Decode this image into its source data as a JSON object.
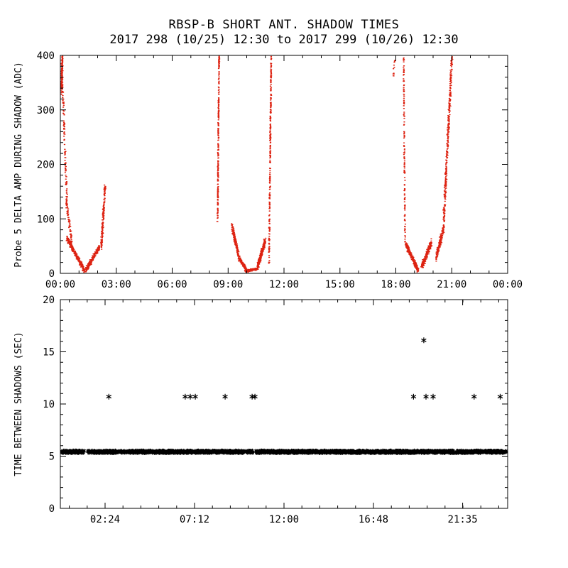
{
  "title": "RBSP-B SHORT ANT. SHADOW TIMES",
  "subtitle": "2017 298 (10/25) 12:30 to 2017 299 (10/26) 12:30",
  "colors": {
    "scatter_red": "#dd2211",
    "marker_black": "#000000",
    "axis": "#000000",
    "background": "#ffffff"
  },
  "chart_data": [
    {
      "type": "scatter",
      "panel": "top",
      "ylabel": "Probe 5 DELTA AMP DURING SHADOW (ADC)",
      "xlabel": "",
      "xlim": [
        0,
        24
      ],
      "ylim": [
        0,
        400
      ],
      "grid": false,
      "marker": "dot",
      "color": "#dd2211",
      "xticks": [
        {
          "v": 0,
          "label": "00:00"
        },
        {
          "v": 3,
          "label": "03:00"
        },
        {
          "v": 6,
          "label": "06:00"
        },
        {
          "v": 9,
          "label": "09:00"
        },
        {
          "v": 12,
          "label": "12:00"
        },
        {
          "v": 15,
          "label": "15:00"
        },
        {
          "v": 18,
          "label": "18:00"
        },
        {
          "v": 21,
          "label": "21:00"
        },
        {
          "v": 24,
          "label": "00:00"
        }
      ],
      "yticks": [
        {
          "v": 0,
          "label": "0"
        },
        {
          "v": 100,
          "label": "100"
        },
        {
          "v": 200,
          "label": "200"
        },
        {
          "v": 300,
          "label": "300"
        },
        {
          "v": 400,
          "label": "400"
        }
      ],
      "minor_x": 1,
      "minor_y": 20,
      "clusters": [
        {
          "x0": 0.04,
          "x1": 0.1,
          "y0": 335,
          "y1": 400,
          "n": 150,
          "sx": 0.035,
          "sy": 14
        },
        {
          "x0": 0.05,
          "x1": 0.33,
          "y0": 392,
          "y1": 140,
          "n": 120,
          "sx": 0.05,
          "sy": 22
        },
        {
          "x0": 0.3,
          "x1": 0.62,
          "y0": 135,
          "y1": 48,
          "n": 90,
          "sx": 0.04,
          "sy": 13
        },
        {
          "x0": 0.32,
          "x1": 1.28,
          "y0": 66,
          "y1": 5,
          "n": 260,
          "sx": 0.05,
          "sy": 7
        },
        {
          "x0": 1.35,
          "x1": 2.08,
          "y0": 6,
          "y1": 48,
          "n": 210,
          "sx": 0.05,
          "sy": 7
        },
        {
          "x0": 2.18,
          "x1": 2.38,
          "y0": 48,
          "y1": 158,
          "n": 170,
          "sx": 0.05,
          "sy": 11
        },
        {
          "x0": 8.42,
          "x1": 8.5,
          "y0": 95,
          "y1": 400,
          "n": 240,
          "sx": 0.03,
          "sy": 6
        },
        {
          "x0": 9.18,
          "x1": 9.58,
          "y0": 88,
          "y1": 28,
          "n": 210,
          "sx": 0.05,
          "sy": 8
        },
        {
          "x0": 9.58,
          "x1": 9.96,
          "y0": 28,
          "y1": 6,
          "n": 160,
          "sx": 0.05,
          "sy": 5
        },
        {
          "x0": 9.92,
          "x1": 10.55,
          "y0": 4,
          "y1": 8,
          "n": 150,
          "sx": 0.07,
          "sy": 3
        },
        {
          "x0": 10.55,
          "x1": 10.98,
          "y0": 10,
          "y1": 60,
          "n": 250,
          "sx": 0.06,
          "sy": 9
        },
        {
          "x0": 11.18,
          "x1": 11.3,
          "y0": 18,
          "y1": 400,
          "n": 270,
          "sx": 0.035,
          "sy": 6
        },
        {
          "x0": 17.83,
          "x1": 17.93,
          "y0": 355,
          "y1": 400,
          "n": 12,
          "sx": 0.03,
          "sy": 10
        },
        {
          "x0": 18.4,
          "x1": 18.48,
          "y0": 400,
          "y1": 58,
          "n": 150,
          "sx": 0.03,
          "sy": 8
        },
        {
          "x0": 18.52,
          "x1": 19.18,
          "y0": 54,
          "y1": 5,
          "n": 250,
          "sx": 0.06,
          "sy": 7
        },
        {
          "x0": 19.38,
          "x1": 19.88,
          "y0": 12,
          "y1": 56,
          "n": 200,
          "sx": 0.06,
          "sy": 9
        },
        {
          "x0": 20.15,
          "x1": 20.55,
          "y0": 28,
          "y1": 85,
          "n": 170,
          "sx": 0.06,
          "sy": 11
        },
        {
          "x0": 20.55,
          "x1": 21.0,
          "y0": 95,
          "y1": 400,
          "n": 340,
          "sx": 0.07,
          "sy": 18
        }
      ]
    },
    {
      "type": "scatter",
      "panel": "bottom",
      "ylabel": "TIME BETWEEN SHADOWS (SEC)",
      "xlabel": "",
      "xlim": [
        0,
        24
      ],
      "ylim": [
        0,
        20
      ],
      "grid": false,
      "marker": "asterisk",
      "color": "#000000",
      "xticks": [
        {
          "v": 2.4,
          "label": "02:24"
        },
        {
          "v": 7.2,
          "label": "07:12"
        },
        {
          "v": 12.0,
          "label": "12:00"
        },
        {
          "v": 16.8,
          "label": "16:48"
        },
        {
          "v": 21.583,
          "label": "21:35"
        }
      ],
      "yticks": [
        {
          "v": 0,
          "label": "0"
        },
        {
          "v": 5,
          "label": "5"
        },
        {
          "v": 10,
          "label": "10"
        },
        {
          "v": 15,
          "label": "15"
        },
        {
          "v": 20,
          "label": "20"
        }
      ],
      "minor_x": 0.96,
      "minor_y": 1,
      "band": {
        "y": 5.42,
        "half_height": 0.16,
        "density": 120,
        "segments": [
          [
            0.06,
            1.3
          ],
          [
            1.44,
            10.34
          ],
          [
            10.48,
            23.96
          ]
        ]
      },
      "points": [
        [
          2.6,
          10.7
        ],
        [
          6.7,
          10.7
        ],
        [
          6.97,
          10.7
        ],
        [
          7.24,
          10.7
        ],
        [
          8.84,
          10.7
        ],
        [
          10.29,
          10.7
        ],
        [
          10.44,
          10.7
        ],
        [
          18.95,
          10.7
        ],
        [
          19.5,
          16.1
        ],
        [
          19.62,
          10.7
        ],
        [
          20.0,
          10.7
        ],
        [
          22.2,
          10.7
        ],
        [
          23.6,
          10.7
        ]
      ]
    }
  ]
}
